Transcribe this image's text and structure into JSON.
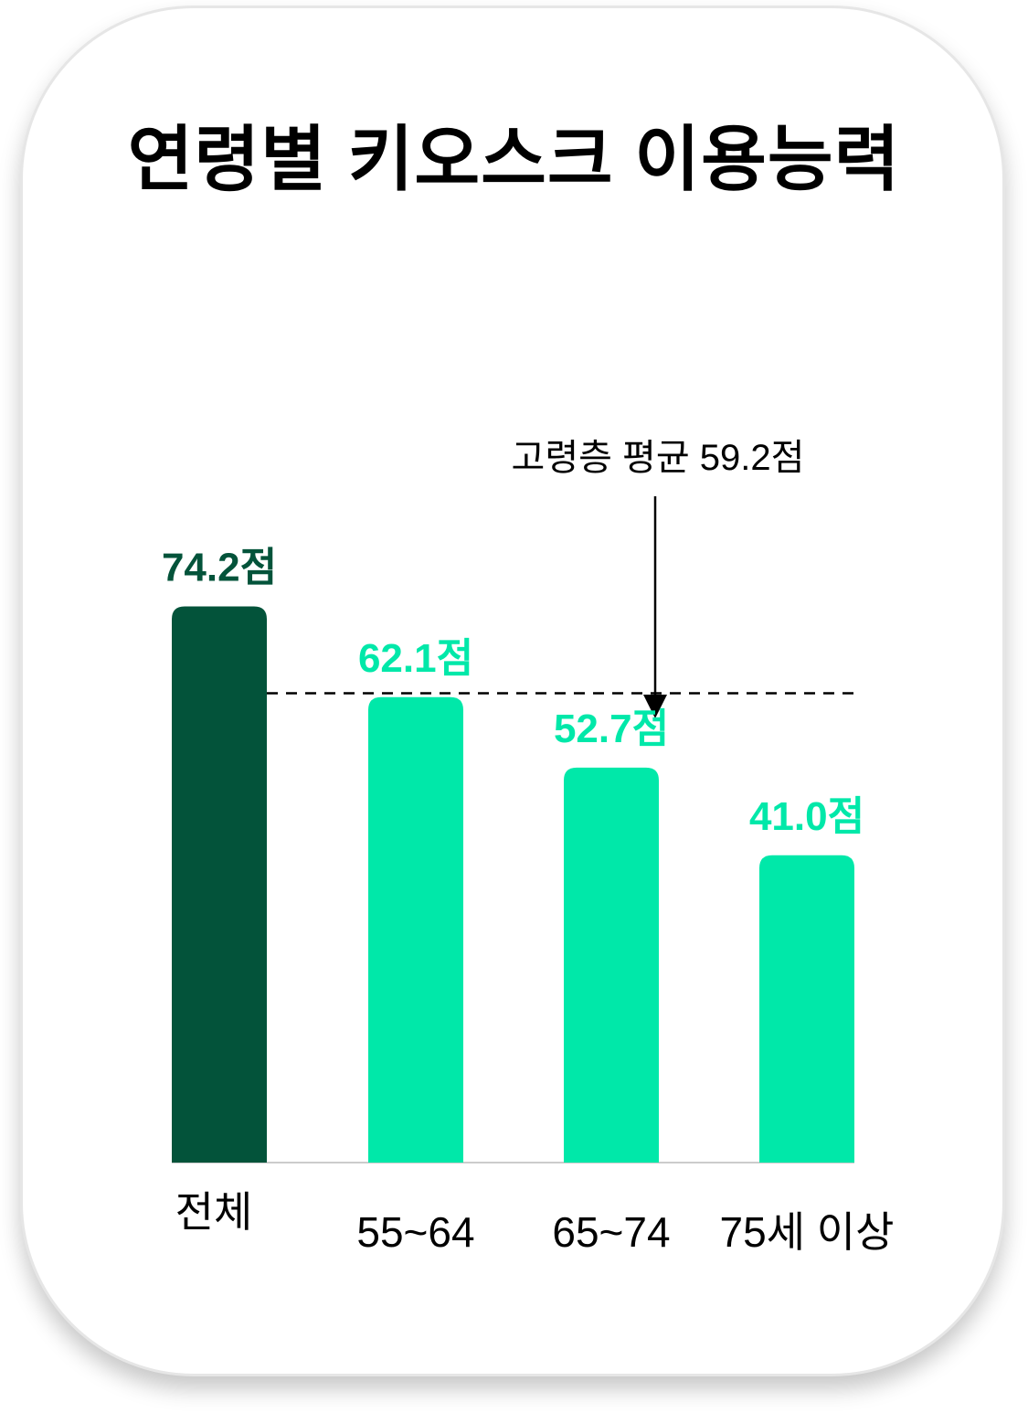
{
  "chart_data": {
    "type": "bar",
    "title": "연령별 키오스크 이용능력",
    "xlabel": "",
    "ylabel": "",
    "ylim": [
      0,
      80
    ],
    "grid": false,
    "legend": "none",
    "categories": [
      "전체",
      "55~64",
      "65~74",
      "75세 이상"
    ],
    "values": [
      74.2,
      62.1,
      52.7,
      41.0
    ],
    "value_labels": [
      "74.2점",
      "62.1점",
      "52.7점",
      "41.0점"
    ],
    "bar_colors": [
      "#03533A",
      "#00E8A9",
      "#00E8A9",
      "#00E8A9"
    ],
    "reference_line": {
      "value": 59.2,
      "label": "고령층 평균 59.2점",
      "style": "dashed",
      "color": "#000000"
    },
    "axis_color": "#cccccc"
  }
}
